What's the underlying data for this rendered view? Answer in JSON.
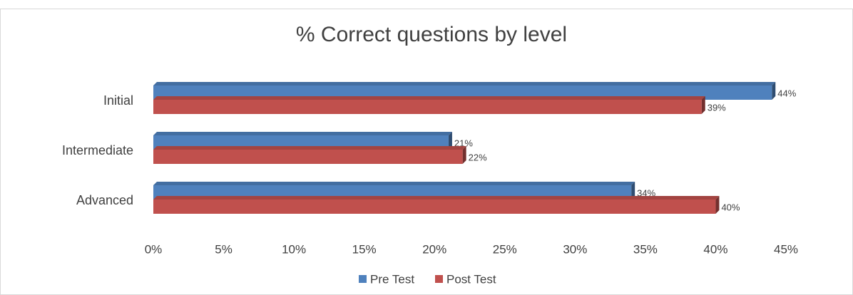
{
  "chart_data": {
    "type": "bar",
    "orientation": "horizontal",
    "title": "% Correct questions by level",
    "categories": [
      "Initial",
      "Intermediate",
      "Advanced"
    ],
    "series": [
      {
        "name": "Pre Test",
        "color": "#4f81bd",
        "values": [
          44,
          21,
          34
        ],
        "value_labels": [
          "44%",
          "21%",
          "34%"
        ]
      },
      {
        "name": "Post Test",
        "color": "#c0504d",
        "values": [
          39,
          22,
          40
        ],
        "value_labels": [
          "39%",
          "22%",
          "40%"
        ]
      }
    ],
    "xlim": [
      0,
      45
    ],
    "xticks": [
      {
        "value": 0,
        "label": "0%"
      },
      {
        "value": 5,
        "label": "5%"
      },
      {
        "value": 10,
        "label": "10%"
      },
      {
        "value": 15,
        "label": "15%"
      },
      {
        "value": 20,
        "label": "20%"
      },
      {
        "value": 25,
        "label": "25%"
      },
      {
        "value": 30,
        "label": "30%"
      },
      {
        "value": 35,
        "label": "35%"
      },
      {
        "value": 40,
        "label": "40%"
      },
      {
        "value": 45,
        "label": "45%"
      }
    ],
    "legend": "bottom",
    "grid": false
  }
}
